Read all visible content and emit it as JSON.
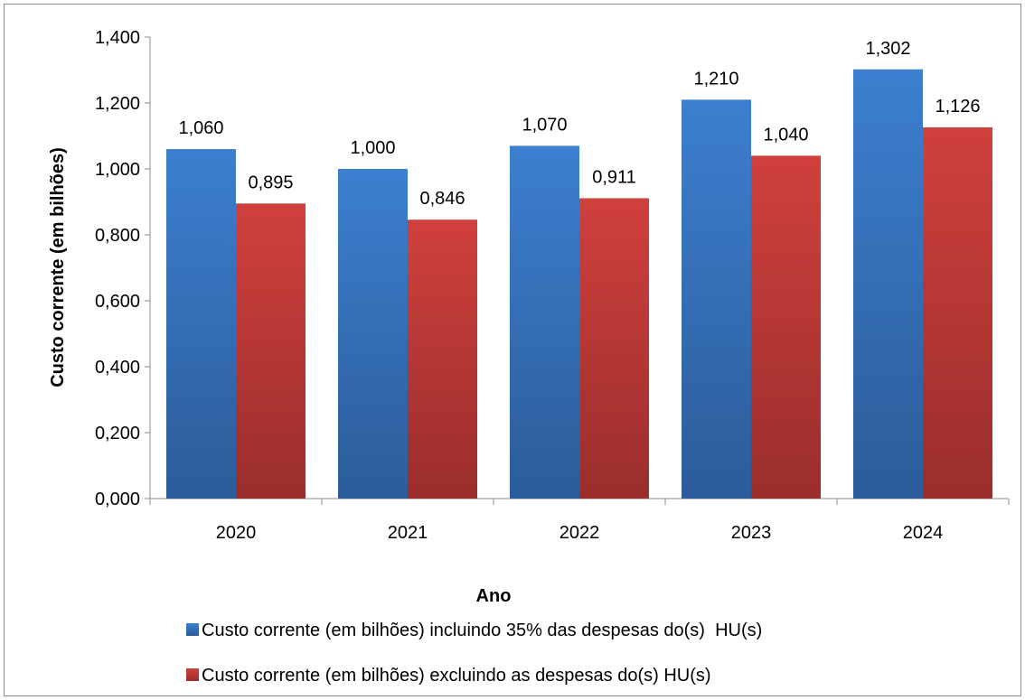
{
  "chart_data": {
    "type": "bar",
    "categories": [
      "2020",
      "2021",
      "2022",
      "2023",
      "2024"
    ],
    "series": [
      {
        "name": "Custo corrente (em bilhões) incluindo 35% das despesas do(s)  HU(s)",
        "values": [
          1.06,
          1.0,
          1.07,
          1.21,
          1.302
        ],
        "labels": [
          "1,060",
          "1,000",
          "1,070",
          "1,210",
          "1,302"
        ],
        "color": "#3a78c3"
      },
      {
        "name": "Custo corrente (em bilhões) excluindo as despesas do(s) HU(s)",
        "values": [
          0.895,
          0.846,
          0.911,
          1.04,
          1.126
        ],
        "labels": [
          "0,895",
          "0,846",
          "0,911",
          "1,040",
          "1,126"
        ],
        "color": "#c63c3a"
      }
    ],
    "xlabel": "Ano",
    "ylabel": "Custo corrente (em bilhões)",
    "ylim": [
      0,
      1.4
    ],
    "yticks": [
      "0,000",
      "0,200",
      "0,400",
      "0,600",
      "0,800",
      "1,000",
      "1,200",
      "1,400"
    ],
    "grid": false,
    "legend": "bottom"
  }
}
